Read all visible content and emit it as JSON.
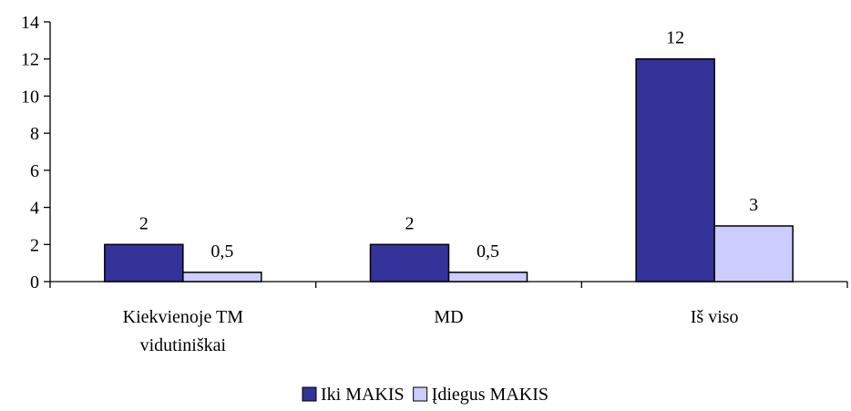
{
  "chart_data": {
    "type": "bar",
    "categories": [
      [
        "Kiekvienoje TM",
        "vidutiniškai"
      ],
      [
        "MD"
      ],
      [
        "Iš viso"
      ]
    ],
    "series": [
      {
        "name": "Iki MAKIS",
        "values": [
          2,
          2,
          12
        ],
        "labels": [
          "2",
          "2",
          "12"
        ],
        "color": "#333399"
      },
      {
        "name": "Įdiegus MAKIS",
        "values": [
          0.5,
          0.5,
          3
        ],
        "labels": [
          "0,5",
          "0,5",
          "3"
        ],
        "color": "#ccccff"
      }
    ],
    "ylim": [
      0,
      14
    ],
    "yticks": [
      0,
      2,
      4,
      6,
      8,
      10,
      12,
      14
    ],
    "grid": false,
    "legend": "bottom-center",
    "title": "",
    "xlabel": "",
    "ylabel": ""
  }
}
